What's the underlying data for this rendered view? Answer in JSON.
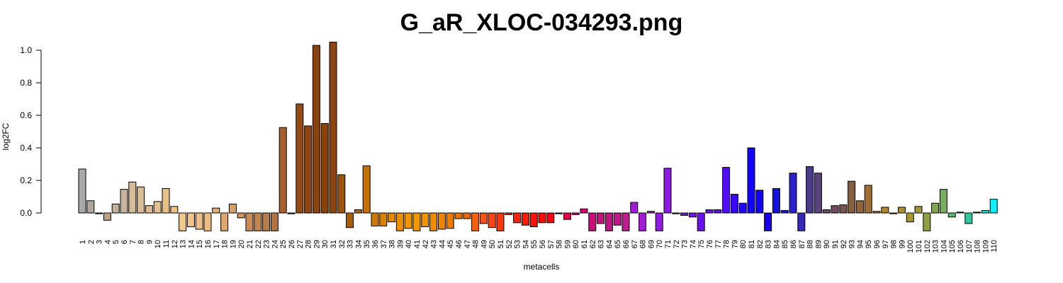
{
  "chart_data": {
    "type": "bar",
    "title": "G_aR_XLOC-034293.png",
    "xlabel": "metacells",
    "ylabel": "log2FC",
    "ylim": [
      -0.11,
      1.05
    ],
    "yticks": [
      0.0,
      0.2,
      0.4,
      0.6,
      0.8,
      1.0
    ],
    "ytick_labels": [
      "0.0",
      "0.2",
      "0.4",
      "0.6",
      "0.8",
      "1.0"
    ],
    "grid": false,
    "categories": [
      "1",
      "2",
      "3",
      "4",
      "5",
      "6",
      "7",
      "8",
      "9",
      "10",
      "11",
      "12",
      "13",
      "14",
      "15",
      "16",
      "17",
      "18",
      "19",
      "20",
      "21",
      "22",
      "23",
      "24",
      "25",
      "26",
      "27",
      "28",
      "29",
      "30",
      "31",
      "32",
      "33",
      "34",
      "35",
      "36",
      "37",
      "38",
      "39",
      "40",
      "41",
      "42",
      "43",
      "44",
      "45",
      "46",
      "47",
      "48",
      "49",
      "50",
      "51",
      "52",
      "53",
      "54",
      "55",
      "56",
      "57",
      "58",
      "59",
      "60",
      "61",
      "62",
      "63",
      "64",
      "65",
      "66",
      "67",
      "68",
      "69",
      "70",
      "71",
      "72",
      "73",
      "74",
      "75",
      "76",
      "77",
      "78",
      "79",
      "80",
      "81",
      "82",
      "83",
      "84",
      "85",
      "86",
      "87",
      "88",
      "89",
      "90",
      "91",
      "92",
      "93",
      "94",
      "95",
      "96",
      "97",
      "98",
      "99",
      "100",
      "101",
      "102",
      "103",
      "104",
      "105",
      "106",
      "107",
      "108",
      "109",
      "110"
    ],
    "values": [
      0.27,
      0.075,
      -0.005,
      -0.045,
      0.055,
      0.145,
      0.19,
      0.16,
      0.045,
      0.07,
      0.15,
      0.04,
      -0.11,
      -0.085,
      -0.1,
      -0.11,
      0.03,
      -0.11,
      0.055,
      -0.03,
      -0.11,
      -0.11,
      -0.11,
      -0.11,
      0.525,
      -0.005,
      0.67,
      0.535,
      1.03,
      0.55,
      1.05,
      0.235,
      -0.09,
      0.02,
      0.29,
      -0.08,
      -0.08,
      -0.055,
      -0.11,
      -0.095,
      -0.11,
      -0.085,
      -0.11,
      -0.1,
      -0.095,
      -0.035,
      -0.035,
      -0.11,
      -0.065,
      -0.09,
      -0.11,
      -0.01,
      -0.06,
      -0.075,
      -0.085,
      -0.06,
      -0.06,
      -0.005,
      -0.04,
      -0.01,
      0.025,
      -0.11,
      -0.065,
      -0.11,
      -0.075,
      -0.11,
      0.065,
      -0.11,
      0.01,
      -0.11,
      0.275,
      -0.005,
      -0.015,
      -0.025,
      -0.11,
      0.02,
      0.02,
      0.28,
      0.115,
      0.06,
      0.4,
      0.14,
      -0.11,
      0.15,
      0.015,
      0.245,
      -0.11,
      0.285,
      0.245,
      0.02,
      0.045,
      0.05,
      0.195,
      0.075,
      0.17,
      0.01,
      0.035,
      -0.005,
      0.035,
      -0.055,
      0.04,
      -0.11,
      0.06,
      0.145,
      -0.025,
      0.005,
      -0.065,
      0.005,
      0.015,
      0.085
    ],
    "colors": [
      "#a9a9a9",
      "#b0a79e",
      "#b6a693",
      "#bca488",
      "#c2b09d",
      "#c9b49e",
      "#d4bc98",
      "#d9bd94",
      "#deba8c",
      "#e3c08e",
      "#e8bf88",
      "#edc08a",
      "#f2c891",
      "#f0c48d",
      "#eec089",
      "#ecbc85",
      "#e4b07a",
      "#dda771",
      "#d69e69",
      "#cf9660",
      "#c88d58",
      "#c18550",
      "#ba7c48",
      "#b37340",
      "#a85f2e",
      "#9e5420",
      "#944b15",
      "#8f460f",
      "#8b420b",
      "#8a4209",
      "#8b4513",
      "#9a5510",
      "#a85e0c",
      "#b66708",
      "#c47005",
      "#d07a03",
      "#d98202",
      "#e08a01",
      "#e89001",
      "#ee9500",
      "#f29800",
      "#f19200",
      "#f08a00",
      "#ef8300",
      "#ee7a00",
      "#ed7200",
      "#ec6900",
      "#f36010",
      "#f65412",
      "#f84710",
      "#fa3a0e",
      "#fb2f0c",
      "#fc250a",
      "#fd1c08",
      "#fe1206",
      "#ff0a04",
      "#f50015",
      "#ed0030",
      "#e50045",
      "#dd005a",
      "#d5006b",
      "#cc0c78",
      "#c8107e",
      "#c41384",
      "#c0178a",
      "#bc1c90",
      "#a01ad8",
      "#a41ad4",
      "#9c1ad8",
      "#941adc",
      "#8c1ae0",
      "#8418e3",
      "#7c16e6",
      "#7414e9",
      "#6c12ec",
      "#6410f0",
      "#5c0ef3",
      "#540cf6",
      "#3a08f8",
      "#2206f9",
      "#1404fa",
      "#1502f5",
      "#1700ec",
      "#1a10e0",
      "#2018d5",
      "#2b22c8",
      "#3528ba",
      "#4a3a8a",
      "#5a4378",
      "#6a4c68",
      "#704c60",
      "#7a5250",
      "#856040",
      "#926638",
      "#9e6e34",
      "#aa7a30",
      "#b8842a",
      "#bd8e22",
      "#b08e2a",
      "#a89730",
      "#9c9a38",
      "#90a040",
      "#84a648",
      "#74ae5a",
      "#5cb870",
      "#44c088",
      "#2cc8a0",
      "#20d4b8",
      "#18e0d0",
      "#10f0ff"
    ]
  }
}
